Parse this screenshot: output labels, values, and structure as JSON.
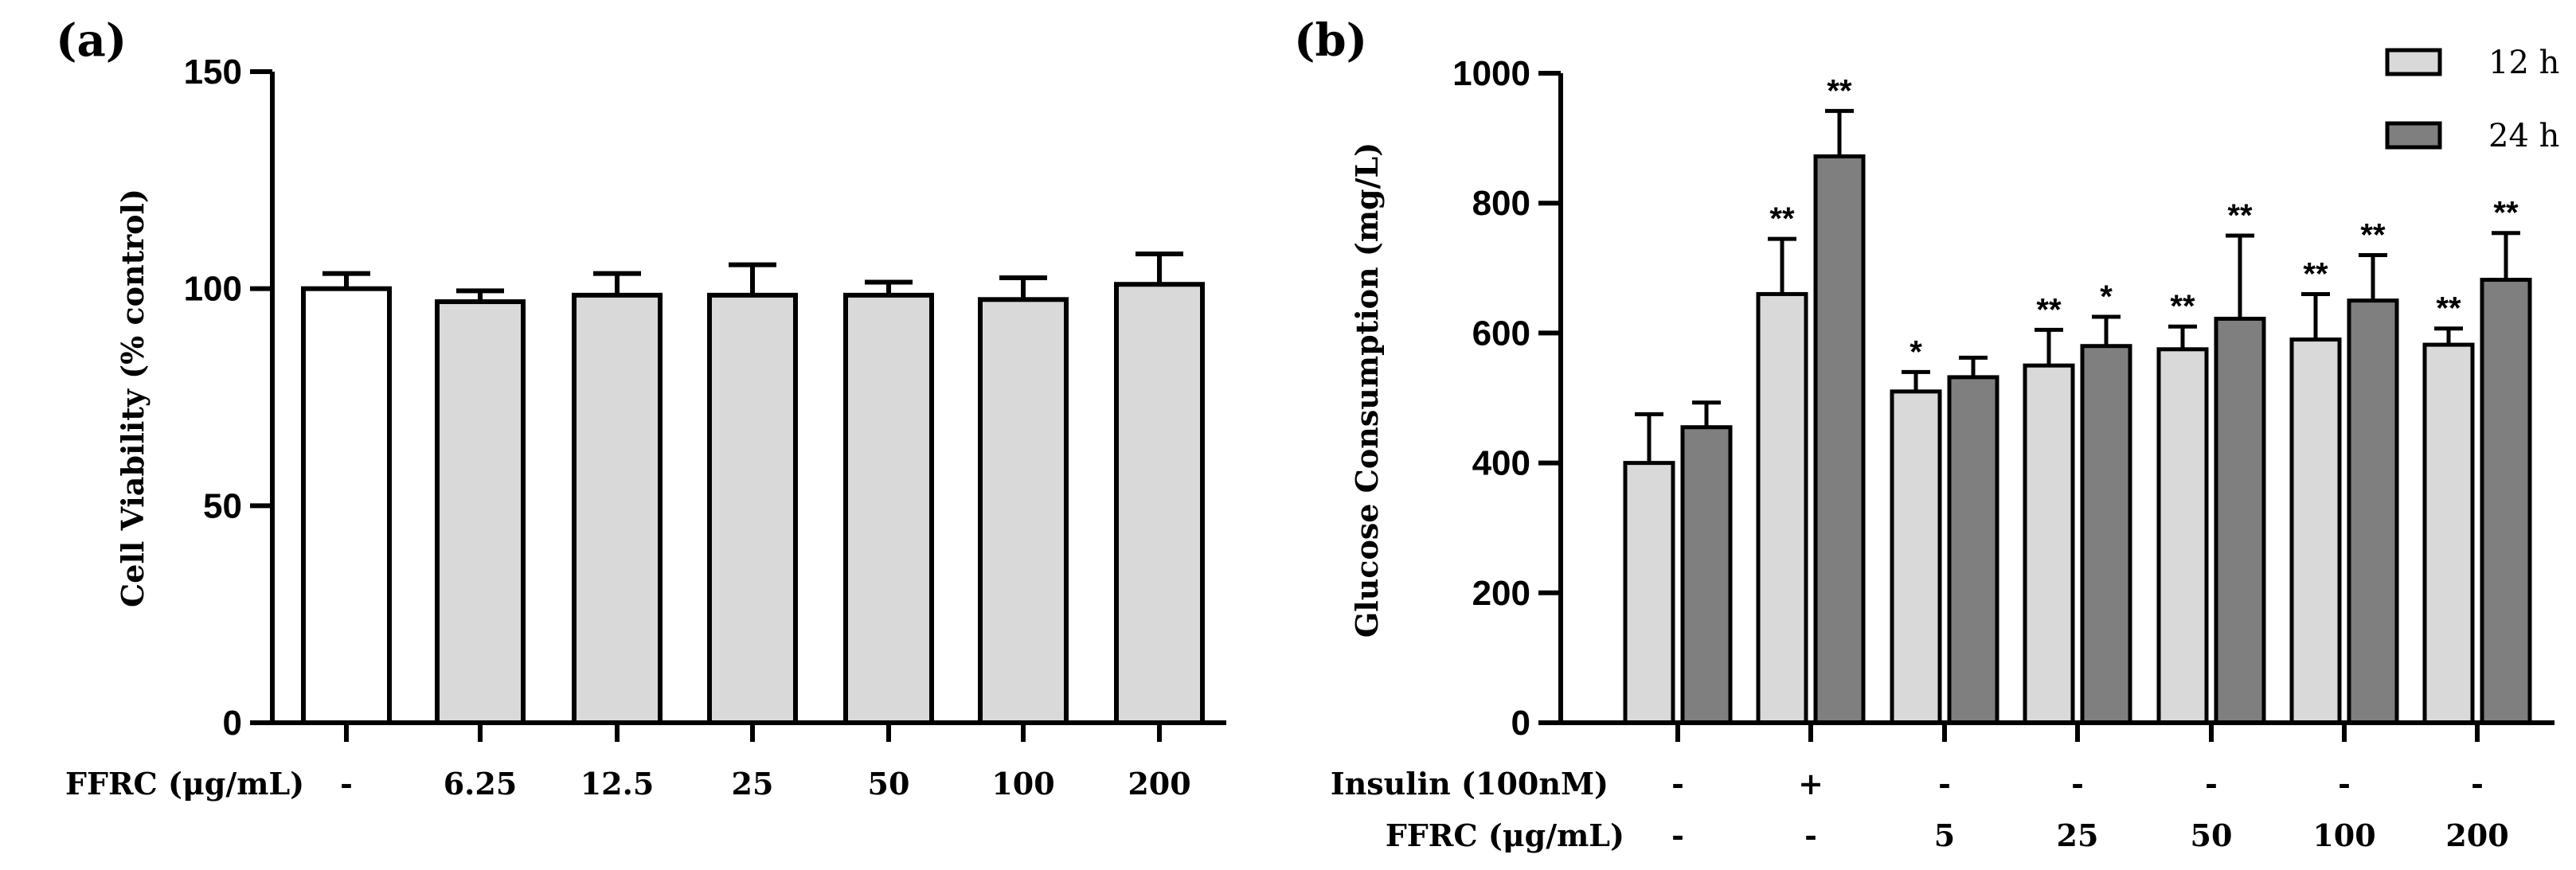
{
  "chart_data": [
    {
      "type": "bar",
      "panel": "(a)",
      "ylabel": "Cell Viability (% control)",
      "ylim": [
        0,
        150
      ],
      "yticks": [
        "0",
        "50",
        "100",
        "150"
      ],
      "row_label": "FFRC (μg/mL)",
      "categories": [
        "-",
        "6.25",
        "12.5",
        "25",
        "50",
        "100",
        "200"
      ],
      "values": [
        100,
        97,
        98.5,
        98.5,
        98.5,
        97.5,
        101
      ],
      "errors": [
        3.5,
        2.5,
        5,
        7,
        3,
        5,
        7
      ],
      "colors": [
        "#ffffff",
        "#d9d9d9",
        "#d9d9d9",
        "#d9d9d9",
        "#d9d9d9",
        "#d9d9d9",
        "#d9d9d9"
      ]
    },
    {
      "type": "bar",
      "panel": "(b)",
      "ylabel": "Glucose Consumption (mg/L)",
      "ylim": [
        0,
        1000
      ],
      "yticks": [
        "0",
        "200",
        "400",
        "600",
        "800",
        "1000"
      ],
      "row_labels": [
        "Insulin  (100nM)",
        "FFRC  (μg/mL)"
      ],
      "insulin": [
        "-",
        "+",
        "-",
        "-",
        "-",
        "-",
        "-"
      ],
      "ffrc": [
        "-",
        "-",
        "5",
        "25",
        "50",
        "100",
        "200"
      ],
      "series": [
        {
          "name": "12 h",
          "color": "#d9d9d9",
          "values": [
            400,
            660,
            510,
            550,
            575,
            590,
            582
          ],
          "errors": [
            75,
            85,
            30,
            55,
            35,
            70,
            25
          ],
          "sig": [
            "",
            "**",
            "*",
            "**",
            "**",
            "**",
            "**"
          ]
        },
        {
          "name": "24 h",
          "color": "#7f7f7f",
          "values": [
            455,
            872,
            532,
            580,
            622,
            650,
            682
          ],
          "errors": [
            38,
            70,
            30,
            45,
            128,
            70,
            72
          ],
          "sig": [
            "",
            "**",
            "",
            "*",
            "**",
            "**",
            "**"
          ]
        }
      ]
    }
  ]
}
